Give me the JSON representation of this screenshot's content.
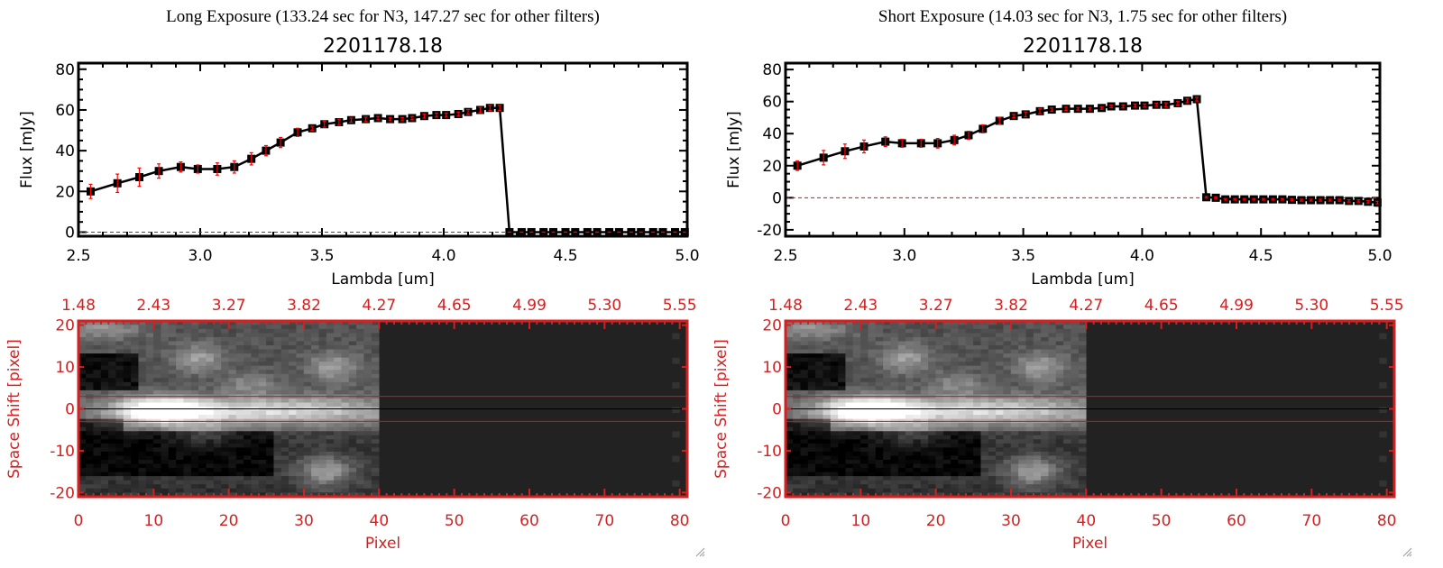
{
  "chart_data": [
    {
      "type": "line",
      "panel": "long-exposure",
      "heading": "Long Exposure (133.24 sec for N3, 147.27 sec for other filters)",
      "title": "2201178.18",
      "xlabel": "Lambda [um]",
      "ylabel": "Flux [mJy]",
      "xlim": [
        2.5,
        5.0
      ],
      "ylim": [
        -2,
        83
      ],
      "xticks": [
        "2.5",
        "3.0",
        "3.5",
        "4.0",
        "4.5",
        "5.0"
      ],
      "xtick_values": [
        2.5,
        3.0,
        3.5,
        4.0,
        4.5,
        5.0
      ],
      "yticks": [
        "0",
        "20",
        "40",
        "60",
        "80"
      ],
      "ytick_values": [
        0,
        20,
        40,
        60,
        80
      ],
      "x": [
        2.55,
        2.66,
        2.75,
        2.83,
        2.92,
        2.99,
        3.07,
        3.14,
        3.21,
        3.27,
        3.33,
        3.4,
        3.46,
        3.51,
        3.57,
        3.62,
        3.68,
        3.73,
        3.78,
        3.83,
        3.87,
        3.92,
        3.97,
        4.01,
        4.06,
        4.1,
        4.15,
        4.19,
        4.23,
        4.27,
        4.32,
        4.36,
        4.41,
        4.45,
        4.5,
        4.54,
        4.59,
        4.63,
        4.68,
        4.72,
        4.77,
        4.81,
        4.86,
        4.9,
        4.95,
        4.99
      ],
      "y": [
        20,
        24,
        27,
        30,
        32,
        31,
        31,
        32,
        36,
        40,
        44,
        49,
        51,
        53,
        54,
        55,
        55.5,
        56,
        55.5,
        55.5,
        56,
        57,
        57.5,
        57.5,
        58,
        59,
        60,
        61,
        61,
        0,
        0,
        0,
        0,
        0,
        0,
        0,
        0,
        0,
        0,
        0,
        0,
        0,
        0,
        0,
        0,
        0
      ],
      "yerr": [
        3.5,
        4.5,
        4.5,
        3.5,
        2.5,
        2,
        3,
        3,
        3,
        2.5,
        2.5,
        2,
        1,
        1.5,
        1.5,
        1,
        1,
        0.8,
        0.8,
        0.8,
        0.8,
        1,
        1,
        1,
        1,
        1.2,
        1.2,
        1.2,
        1.2,
        0,
        0,
        0,
        0,
        0,
        0,
        0,
        0,
        0,
        0,
        0,
        0,
        0,
        0,
        0,
        0,
        0
      ],
      "zero_line": 0
    },
    {
      "type": "line",
      "panel": "short-exposure",
      "heading": "Short Exposure (14.03 sec for N3, 1.75 sec for other filters)",
      "title": "2201178.18",
      "xlabel": "Lambda [um]",
      "ylabel": "Flux [mJy]",
      "xlim": [
        2.5,
        5.0
      ],
      "ylim": [
        -24,
        84
      ],
      "xticks": [
        "2.5",
        "3.0",
        "3.5",
        "4.0",
        "4.5",
        "5.0"
      ],
      "xtick_values": [
        2.5,
        3.0,
        3.5,
        4.0,
        4.5,
        5.0
      ],
      "yticks": [
        "-20",
        "0",
        "20",
        "40",
        "60",
        "80"
      ],
      "ytick_values": [
        -20,
        0,
        20,
        40,
        60,
        80
      ],
      "x": [
        2.55,
        2.66,
        2.75,
        2.83,
        2.92,
        2.99,
        3.07,
        3.14,
        3.21,
        3.27,
        3.33,
        3.4,
        3.46,
        3.51,
        3.57,
        3.62,
        3.68,
        3.73,
        3.78,
        3.83,
        3.87,
        3.92,
        3.97,
        4.01,
        4.06,
        4.1,
        4.15,
        4.19,
        4.23,
        4.27,
        4.31,
        4.35,
        4.39,
        4.43,
        4.47,
        4.51,
        4.55,
        4.59,
        4.63,
        4.67,
        4.71,
        4.75,
        4.79,
        4.83,
        4.87,
        4.91,
        4.95,
        4.99
      ],
      "y": [
        20,
        25,
        29,
        32,
        35,
        34,
        34,
        34,
        36,
        39,
        43,
        48,
        51,
        52,
        54,
        55,
        55.5,
        55.5,
        55.5,
        56,
        57,
        57,
        57.5,
        57.5,
        58,
        58,
        59,
        60.5,
        61.5,
        0.3,
        0,
        -1,
        -1,
        -1,
        -1,
        -1,
        -1,
        -1,
        -1.3,
        -1.5,
        -1.5,
        -1.5,
        -1.5,
        -1.5,
        -2,
        -2,
        -2.5,
        -3
      ],
      "yerr": [
        3,
        4.5,
        4.5,
        4,
        3,
        2.5,
        2.5,
        3,
        3,
        2.5,
        2.5,
        2,
        1,
        1.5,
        1.5,
        1,
        1,
        0.8,
        0.8,
        0.8,
        0.8,
        1,
        1,
        1,
        1,
        1.2,
        1.2,
        1.2,
        1.2,
        0.5,
        0.5,
        0.5,
        0.5,
        0.5,
        0.5,
        0.5,
        0.5,
        0.5,
        0.6,
        0.6,
        0.6,
        0.6,
        0.6,
        0.6,
        0.7,
        0.7,
        0.8,
        0.8
      ],
      "zero_line": 0
    },
    {
      "type": "heatmap",
      "panel": "long-exposure-image",
      "xlabel": "Pixel",
      "ylabel": "Space Shift [pixel]",
      "xlim": [
        0,
        81
      ],
      "ylim": [
        -21,
        21
      ],
      "xticks": [
        "0",
        "10",
        "20",
        "30",
        "40",
        "50",
        "60",
        "70",
        "80"
      ],
      "xtick_values": [
        0,
        10,
        20,
        30,
        40,
        50,
        60,
        70,
        80
      ],
      "yticks": [
        "-20",
        "-10",
        "0",
        "10",
        "20"
      ],
      "ytick_values": [
        -20,
        -10,
        0,
        10,
        20
      ],
      "top_ticks": [
        "1.48",
        "2.43",
        "3.27",
        "3.82",
        "4.27",
        "4.65",
        "4.99",
        "5.30",
        "5.55"
      ],
      "aperture_lines": [
        3,
        -3
      ],
      "center_line": 0
    },
    {
      "type": "heatmap",
      "panel": "short-exposure-image",
      "xlabel": "Pixel",
      "ylabel": "Space Shift [pixel]",
      "xlim": [
        0,
        81
      ],
      "ylim": [
        -21,
        21
      ],
      "xticks": [
        "0",
        "10",
        "20",
        "30",
        "40",
        "50",
        "60",
        "70",
        "80"
      ],
      "xtick_values": [
        0,
        10,
        20,
        30,
        40,
        50,
        60,
        70,
        80
      ],
      "yticks": [
        "-20",
        "-10",
        "0",
        "10",
        "20"
      ],
      "ytick_values": [
        -20,
        -10,
        0,
        10,
        20
      ],
      "top_ticks": [
        "1.48",
        "2.43",
        "3.27",
        "3.82",
        "4.27",
        "4.65",
        "4.99",
        "5.30",
        "5.55"
      ],
      "aperture_lines": [
        3,
        -3
      ],
      "center_line": 0
    }
  ],
  "heatmap_model": {
    "data_columns": 40,
    "rows": 43,
    "blank_level": 0.13,
    "sources": [
      {
        "x": 11,
        "y": -0.5,
        "amp": 0.75,
        "sx": 4,
        "sy": 2.2
      },
      {
        "x": 25,
        "y": -0.5,
        "amp": 0.55,
        "sx": 14,
        "sy": 2.4
      },
      {
        "x": 16,
        "y": 12,
        "amp": 0.3,
        "sx": 2.5,
        "sy": 2.5
      },
      {
        "x": 34,
        "y": 10,
        "amp": 0.3,
        "sx": 2.5,
        "sy": 2.5
      },
      {
        "x": 23,
        "y": 6,
        "amp": 0.2,
        "sx": 2.5,
        "sy": 2
      },
      {
        "x": 33,
        "y": -15,
        "amp": 0.4,
        "sx": 2.5,
        "sy": 2.5
      },
      {
        "x": 3,
        "y": 19,
        "amp": 0.25,
        "sx": 4,
        "sy": 2
      },
      {
        "x": 17,
        "y": -6,
        "amp": 0.2,
        "sx": 3,
        "sy": 2
      }
    ],
    "colors": {
      "frame": "#d42020",
      "data": "#000000",
      "error": "#ff0000",
      "blank": "#222222"
    }
  }
}
